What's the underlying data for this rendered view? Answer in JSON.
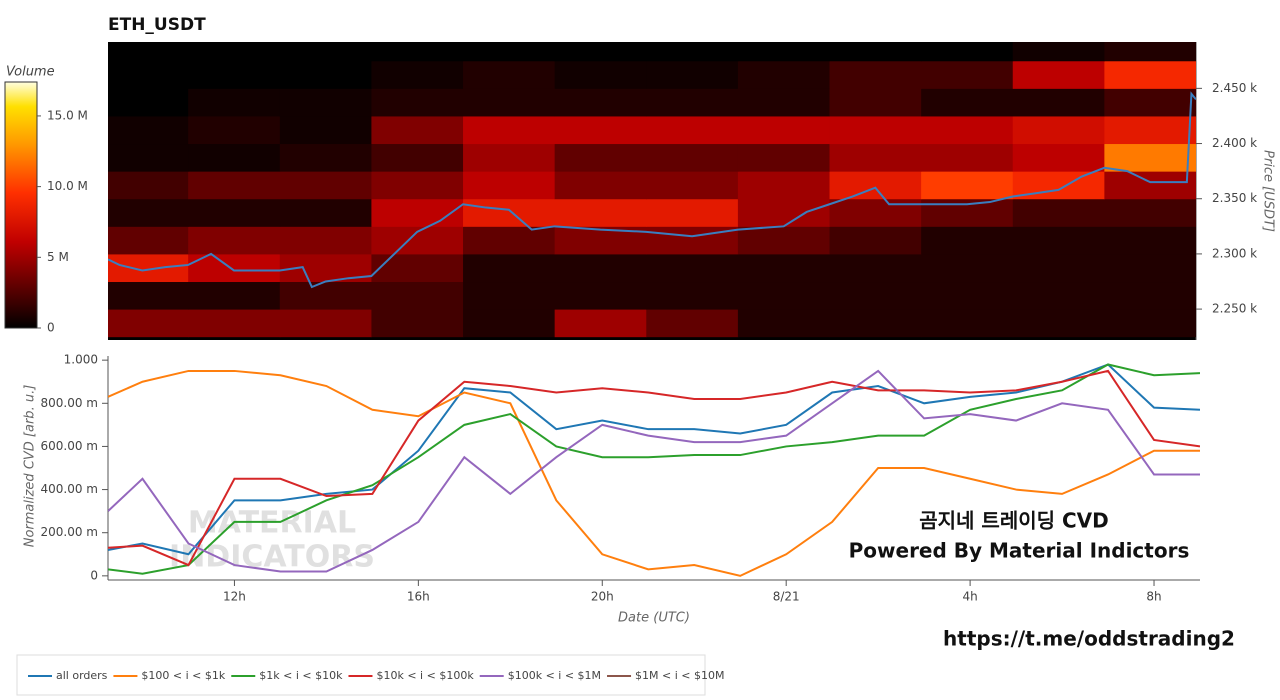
{
  "chart_data": [
    {
      "type": "heatmap",
      "title": "ETH_USDT",
      "ylabel": "Price [USDT]",
      "xlim": [
        9.25,
        33
      ],
      "ylim": [
        2222,
        2492
      ],
      "yticks": [
        {
          "value": 2250,
          "label": "2.250 k"
        },
        {
          "value": 2300,
          "label": "2.300 k"
        },
        {
          "value": 2350,
          "label": "2.350 k"
        },
        {
          "value": 2400,
          "label": "2.400 k"
        },
        {
          "value": 2450,
          "label": "2.450 k"
        }
      ],
      "x_bins": [
        9.25,
        11,
        13,
        15,
        17,
        19,
        21,
        23,
        25,
        27,
        29,
        31,
        33
      ],
      "y_bins": [
        2225,
        2250,
        2275,
        2300,
        2325,
        2350,
        2375,
        2400,
        2425,
        2450,
        2475,
        2500
      ],
      "values": [
        [
          4,
          4,
          4,
          2,
          1,
          5,
          3,
          1,
          1,
          1,
          1,
          1
        ],
        [
          1,
          1,
          2,
          2,
          1,
          1,
          1,
          1,
          1,
          1,
          1,
          1
        ],
        [
          8,
          6,
          5,
          3,
          1,
          1,
          1,
          1,
          1,
          1,
          1,
          1
        ],
        [
          3,
          4,
          4,
          5,
          3,
          4,
          4,
          3,
          2,
          1,
          1,
          1
        ],
        [
          1,
          1,
          1,
          6,
          8,
          8,
          8,
          5,
          4,
          3,
          2,
          2
        ],
        [
          2,
          3,
          3,
          4,
          6,
          4,
          4,
          5,
          8,
          10,
          9,
          5
        ],
        [
          0.5,
          0.5,
          1,
          2,
          5,
          3,
          3,
          3,
          5,
          5,
          6,
          12
        ],
        [
          0.5,
          1,
          0.5,
          4,
          6,
          6,
          6,
          6,
          6,
          6,
          7,
          8
        ],
        [
          0,
          0.5,
          0.5,
          1,
          1,
          1,
          1,
          1,
          2,
          1,
          1,
          2
        ],
        [
          0,
          0,
          0,
          0.5,
          1,
          0.5,
          0.5,
          1,
          2,
          2,
          6,
          9
        ],
        [
          0,
          0,
          0,
          0,
          0,
          0,
          0,
          0,
          0,
          0,
          0.5,
          1
        ]
      ],
      "colorbar": {
        "label": "Volume",
        "clim": [
          0,
          17.4
        ],
        "ticks": [
          0,
          {
            "value": 5,
            "label": "5 M"
          },
          {
            "value": 10,
            "label": "10.0 M"
          },
          {
            "value": 15,
            "label": "15.0 M"
          }
        ]
      },
      "line": {
        "color": "#3a7ebf",
        "x": [
          9.25,
          9.5,
          10,
          10.5,
          11,
          11.5,
          12,
          13,
          13.5,
          13.7,
          14,
          14.5,
          15,
          15.5,
          16,
          16.5,
          17,
          17.5,
          18,
          18.5,
          19,
          20,
          21,
          22,
          23,
          24,
          24.5,
          25,
          25.5,
          26,
          26.3,
          27,
          28,
          28.5,
          29,
          29.5,
          30,
          30.5,
          31,
          31.5,
          32,
          32.8,
          32.9,
          33
        ],
        "y": [
          2295,
          2290,
          2285,
          2288,
          2290,
          2300,
          2285,
          2285,
          2288,
          2270,
          2275,
          2278,
          2280,
          2300,
          2320,
          2330,
          2345,
          2342,
          2340,
          2322,
          2325,
          2322,
          2320,
          2316,
          2322,
          2325,
          2338,
          2345,
          2352,
          2360,
          2345,
          2345,
          2345,
          2347,
          2352,
          2355,
          2358,
          2370,
          2378,
          2375,
          2365,
          2365,
          2445,
          2440
        ]
      }
    },
    {
      "type": "line",
      "xlabel": "Date (UTC)",
      "ylabel": "Normalized CVD [arb. u.]",
      "xlim": [
        9.25,
        33
      ],
      "ylim": [
        -0.01,
        1.01
      ],
      "xticks": [
        {
          "value": 12,
          "label": "12h"
        },
        {
          "value": 16,
          "label": "16h"
        },
        {
          "value": 20,
          "label": "20h"
        },
        {
          "value": 24,
          "label": "8/21"
        },
        {
          "value": 28,
          "label": "4h"
        },
        {
          "value": 32,
          "label": "8h"
        }
      ],
      "yticks": [
        0,
        {
          "value": 0.2,
          "label": "200.00 m"
        },
        {
          "value": 0.4,
          "label": "400.00 m"
        },
        {
          "value": 0.6,
          "label": "600.00 m"
        },
        {
          "value": 0.8,
          "label": "800.00 m"
        },
        {
          "value": 1,
          "label": "1.000"
        }
      ],
      "x": [
        9.25,
        10,
        11,
        12,
        13,
        14,
        15,
        16,
        17,
        18,
        19,
        20,
        21,
        22,
        23,
        24,
        25,
        26,
        27,
        28,
        29,
        30,
        31,
        32,
        33
      ],
      "series": [
        {
          "name": "all orders",
          "color": "#1f77b4",
          "values": [
            0.12,
            0.15,
            0.1,
            0.35,
            0.35,
            0.38,
            0.4,
            0.58,
            0.87,
            0.85,
            0.68,
            0.72,
            0.68,
            0.68,
            0.66,
            0.7,
            0.85,
            0.88,
            0.8,
            0.83,
            0.85,
            0.9,
            0.98,
            0.78,
            0.77
          ]
        },
        {
          "name": "$100 < i < $1k",
          "color": "#ff7f0e",
          "values": [
            0.83,
            0.9,
            0.95,
            0.95,
            0.93,
            0.88,
            0.77,
            0.74,
            0.85,
            0.8,
            0.35,
            0.1,
            0.03,
            0.05,
            0,
            0.1,
            0.25,
            0.5,
            0.5,
            0.45,
            0.4,
            0.38,
            0.47,
            0.58,
            0.58
          ]
        },
        {
          "name": "$1k < i < $10k",
          "color": "#2ca02c",
          "values": [
            0.03,
            0.01,
            0.05,
            0.25,
            0.25,
            0.35,
            0.42,
            0.55,
            0.7,
            0.75,
            0.6,
            0.55,
            0.55,
            0.56,
            0.56,
            0.6,
            0.62,
            0.65,
            0.65,
            0.77,
            0.82,
            0.86,
            0.98,
            0.93,
            0.94
          ]
        },
        {
          "name": "$10k < i < $100k",
          "color": "#d62728",
          "values": [
            0.13,
            0.14,
            0.05,
            0.45,
            0.45,
            0.37,
            0.38,
            0.72,
            0.9,
            0.88,
            0.85,
            0.87,
            0.85,
            0.82,
            0.82,
            0.85,
            0.9,
            0.86,
            0.86,
            0.85,
            0.86,
            0.9,
            0.95,
            0.63,
            0.6
          ]
        },
        {
          "name": "$100k < i < $1M",
          "color": "#9467bd",
          "values": [
            0.3,
            0.45,
            0.15,
            0.05,
            0.02,
            0.02,
            0.12,
            0.25,
            0.55,
            0.38,
            0.55,
            0.7,
            0.65,
            0.62,
            0.62,
            0.65,
            0.8,
            0.95,
            0.73,
            0.75,
            0.72,
            0.8,
            0.77,
            0.47,
            0.47
          ]
        },
        {
          "name": "$1M < i < $10M",
          "color": "#8c564b"
        }
      ],
      "annotations": [
        "곰지네 트레이딩 CVD",
        "Powered By Material Indictors"
      ],
      "watermark": [
        "MATERIAL",
        "INDICATORS"
      ]
    }
  ],
  "footer_link": "https://t.me/oddstrading2"
}
